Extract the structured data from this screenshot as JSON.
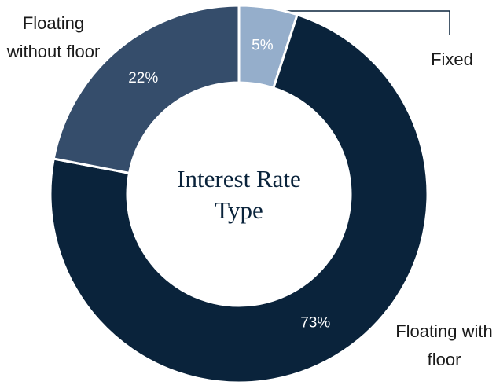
{
  "chart_data": {
    "type": "donut",
    "title": "Interest Rate Type",
    "categories": [
      "Fixed",
      "Floating with floor",
      "Floating without floor"
    ],
    "values": [
      5,
      73,
      22
    ],
    "value_labels": [
      "5%",
      "73%",
      "22%"
    ],
    "colors": [
      "#95aecb",
      "#0a233b",
      "#354d6b"
    ]
  }
}
